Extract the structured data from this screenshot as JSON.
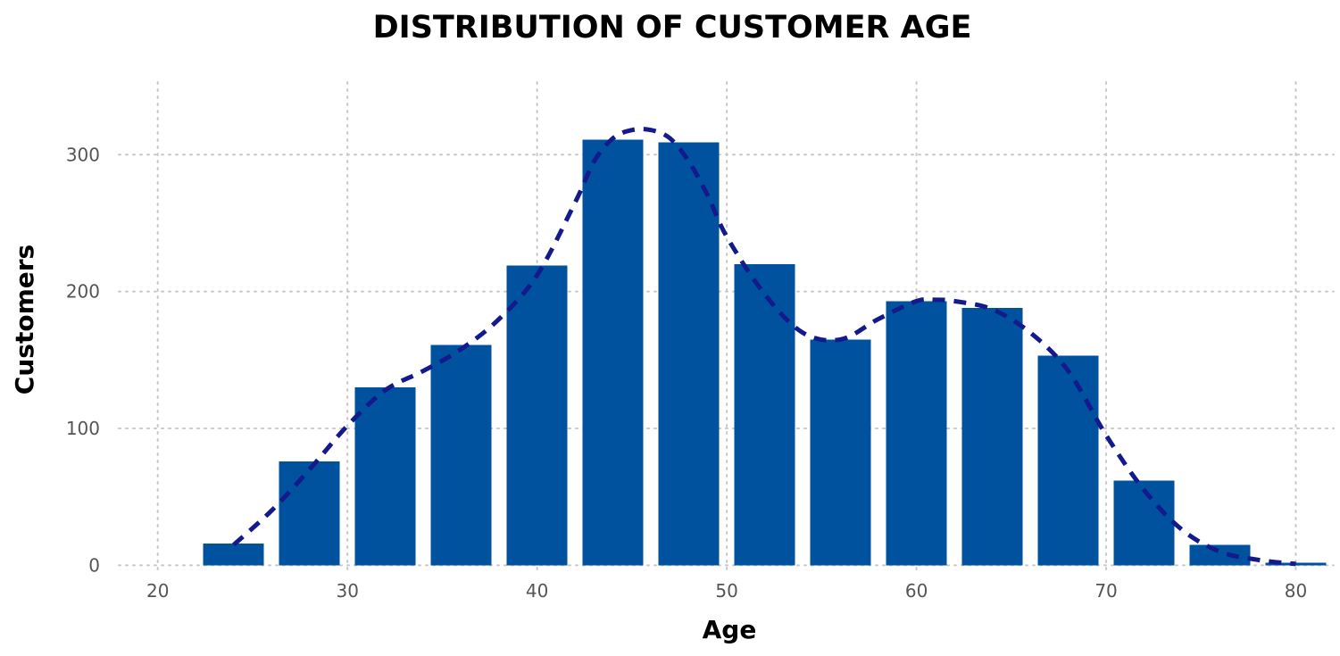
{
  "chart_data": {
    "type": "bar",
    "title": "DISTRIBUTION OF CUSTOMER AGE",
    "xlabel": "Age",
    "ylabel": "Customers",
    "xlim": [
      17,
      82
    ],
    "ylim": [
      -3,
      353
    ],
    "x_ticks": [
      20,
      30,
      40,
      50,
      60,
      70,
      80
    ],
    "y_ticks": [
      0,
      100,
      200,
      300
    ],
    "grid": true,
    "bin_width": 4,
    "bins": [
      {
        "start": 22,
        "end": 26,
        "value": 16
      },
      {
        "start": 26,
        "end": 30,
        "value": 76
      },
      {
        "start": 30,
        "end": 34,
        "value": 130
      },
      {
        "start": 34,
        "end": 38,
        "value": 161
      },
      {
        "start": 38,
        "end": 42,
        "value": 219
      },
      {
        "start": 42,
        "end": 46,
        "value": 311
      },
      {
        "start": 46,
        "end": 50,
        "value": 309
      },
      {
        "start": 50,
        "end": 54,
        "value": 220
      },
      {
        "start": 54,
        "end": 58,
        "value": 165
      },
      {
        "start": 58,
        "end": 62,
        "value": 193
      },
      {
        "start": 62,
        "end": 66,
        "value": 188
      },
      {
        "start": 66,
        "end": 70,
        "value": 153
      },
      {
        "start": 70,
        "end": 74,
        "value": 62
      },
      {
        "start": 74,
        "end": 78,
        "value": 15
      },
      {
        "start": 78,
        "end": 82,
        "value": 2
      }
    ],
    "density_curve": {
      "style": "dashed",
      "x": [
        24,
        26,
        28,
        30,
        32,
        34,
        36,
        38,
        40,
        42,
        43,
        44,
        45,
        46,
        47,
        48,
        49,
        50,
        52,
        54,
        56,
        58,
        60,
        61,
        62,
        64,
        66,
        68,
        70,
        72,
        74,
        76,
        78,
        80
      ],
      "y": [
        15,
        40,
        70,
        102,
        128,
        142,
        158,
        180,
        212,
        265,
        295,
        312,
        318,
        318,
        312,
        295,
        270,
        240,
        198,
        170,
        165,
        180,
        193,
        194,
        193,
        187,
        170,
        142,
        95,
        55,
        26,
        10,
        4,
        1
      ]
    },
    "colors": {
      "bar": "#00529f",
      "line": "#141a8c"
    }
  }
}
